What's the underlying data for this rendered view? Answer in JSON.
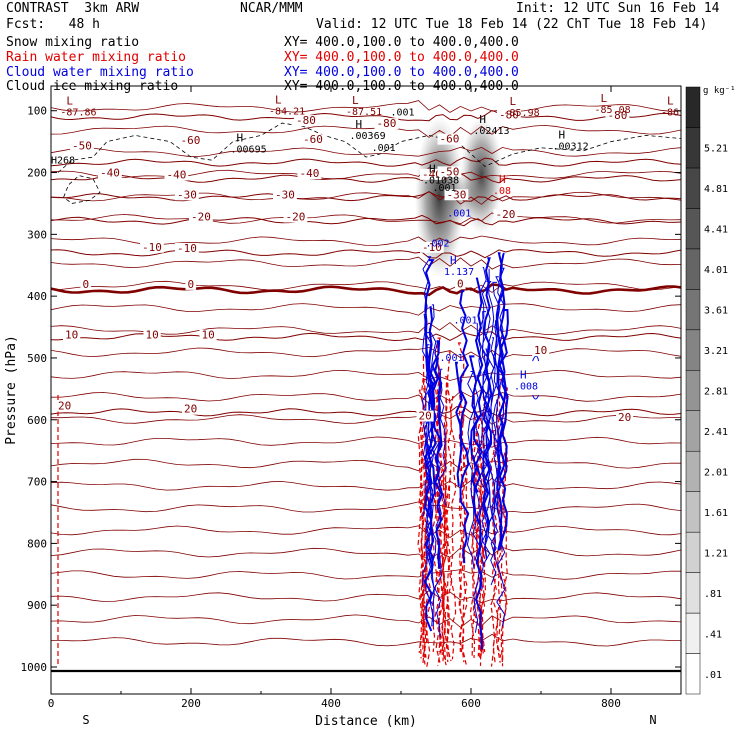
{
  "header": {
    "model": "CONTRAST  3km ARW",
    "org": "NCAR/MMM",
    "init": "Init: 12 UTC Sun 16 Feb 14",
    "fcst": "Fcst:   48 h",
    "valid": "Valid: 12 UTC Tue 18 Feb 14 (22 ChT Tue 18 Feb 14)",
    "fields": [
      {
        "name": "Snow mixing ratio",
        "xy": "XY= 400.0,100.0 to 400.0,400.0",
        "color": "#000000"
      },
      {
        "name": "Rain water mixing ratio",
        "xy": "XY= 400.0,100.0 to 400.0,400.0",
        "color": "#e00000"
      },
      {
        "name": "Cloud water mixing ratio",
        "xy": "XY= 400.0,100.0 to 400.0,400.0",
        "color": "#0000e0"
      },
      {
        "name": "Cloud ice mixing ratio",
        "xy": "XY= 400.0,100.0 to 400.0,400.0",
        "color": "#000000"
      }
    ]
  },
  "chart_data": {
    "type": "heatmap",
    "xlabel": "Distance (km)",
    "ylabel": "Pressure (hPa)",
    "xlim": [
      0,
      900
    ],
    "ylim": [
      1000,
      60
    ],
    "x_ticks": [
      0,
      200,
      400,
      600,
      800
    ],
    "x_tick_labels": [
      "0",
      "200",
      "400",
      "600",
      "800"
    ],
    "y_ticks": [
      100,
      200,
      300,
      400,
      500,
      600,
      700,
      800,
      900,
      1000
    ],
    "y_tick_labels": [
      "100",
      "200",
      "300",
      "400",
      "500",
      "600",
      "700",
      "800",
      "900",
      "1000"
    ],
    "endpoints": [
      {
        "x": 50,
        "label": "S"
      },
      {
        "x": 860,
        "label": "N"
      }
    ],
    "colorbar": {
      "unit": "g kg⁻¹",
      "levels": [
        0.01,
        0.41,
        0.81,
        1.21,
        1.61,
        2.01,
        2.41,
        2.81,
        3.21,
        3.61,
        4.01,
        4.41,
        4.81,
        5.21
      ],
      "labels": [
        ".01",
        ".41",
        ".81",
        "1.21",
        "1.61",
        "2.01",
        "2.41",
        "2.81",
        "3.21",
        "3.61",
        "4.01",
        "4.41",
        "4.81",
        "5.21"
      ]
    },
    "temperature_contours": [
      {
        "p": 110,
        "label": "-80"
      },
      {
        "p": 184,
        "label": "-50"
      },
      {
        "p": 210,
        "label": "-40"
      },
      {
        "p": 240,
        "label": "-30"
      },
      {
        "p": 278,
        "label": "-20"
      },
      {
        "p": 330,
        "label": "-10"
      },
      {
        "p": 390,
        "label": "0",
        "bold": true
      },
      {
        "p": 466,
        "label": "10"
      },
      {
        "p": 588,
        "label": "20"
      }
    ],
    "temperature_labels": [
      {
        "x": 70,
        "p": 205,
        "text": "-40"
      },
      {
        "x": 165,
        "p": 208,
        "text": "-40"
      },
      {
        "x": 355,
        "p": 206,
        "text": "-40"
      },
      {
        "x": 530,
        "p": 207,
        "text": "-40"
      },
      {
        "x": 180,
        "p": 240,
        "text": "-30"
      },
      {
        "x": 320,
        "p": 240,
        "text": "-30"
      },
      {
        "x": 565,
        "p": 240,
        "text": "-30"
      },
      {
        "x": 200,
        "p": 276,
        "text": "-20"
      },
      {
        "x": 335,
        "p": 276,
        "text": "-20"
      },
      {
        "x": 635,
        "p": 272,
        "text": "-20"
      },
      {
        "x": 130,
        "p": 325,
        "text": "-10"
      },
      {
        "x": 180,
        "p": 327,
        "text": "-10"
      },
      {
        "x": 530,
        "p": 325,
        "text": "-10"
      },
      {
        "x": 45,
        "p": 385,
        "text": "0"
      },
      {
        "x": 195,
        "p": 385,
        "text": "0"
      },
      {
        "x": 580,
        "p": 384,
        "text": "0"
      },
      {
        "x": 20,
        "p": 467,
        "text": "10"
      },
      {
        "x": 135,
        "p": 467,
        "text": "10"
      },
      {
        "x": 215,
        "p": 467,
        "text": "10"
      },
      {
        "x": 690,
        "p": 492,
        "text": "10"
      },
      {
        "x": 10,
        "p": 582,
        "text": "20"
      },
      {
        "x": 190,
        "p": 587,
        "text": "20"
      },
      {
        "x": 525,
        "p": 598,
        "text": "20"
      },
      {
        "x": 810,
        "p": 600,
        "text": "20"
      },
      {
        "x": 30,
        "p": 161,
        "text": "-50"
      },
      {
        "x": 185,
        "p": 152,
        "text": "-60"
      },
      {
        "x": 360,
        "p": 151,
        "text": "-60"
      },
      {
        "x": 555,
        "p": 150,
        "text": "-60"
      },
      {
        "x": 465,
        "p": 125,
        "text": "-80"
      },
      {
        "x": 640,
        "p": 111,
        "text": "-80"
      },
      {
        "x": 350,
        "p": 120,
        "text": "-80"
      },
      {
        "x": 795,
        "p": 112,
        "text": "-80"
      },
      {
        "x": 555,
        "p": 203,
        "text": "-50"
      }
    ],
    "extrema": [
      {
        "x": 22,
        "p": 90,
        "type": "L",
        "value": "-87.86",
        "color": "#800000"
      },
      {
        "x": 320,
        "p": 88,
        "type": "L",
        "value": "-84.21",
        "color": "#800000"
      },
      {
        "x": 430,
        "p": 89,
        "type": "L",
        "value": "-87.51",
        "color": "#800000"
      },
      {
        "x": 655,
        "p": 91,
        "type": "L",
        "value": "-85.98",
        "color": "#800000"
      },
      {
        "x": 785,
        "p": 86,
        "type": "L",
        "value": "-85.08",
        "color": "#800000"
      },
      {
        "x": 880,
        "p": 90,
        "type": "L",
        "value": "-86",
        "color": "#800000"
      },
      {
        "x": 435,
        "p": 128,
        "type": "H",
        "value": ".00369",
        "color": "#000000"
      },
      {
        "x": 265,
        "p": 150,
        "type": "H",
        "value": ".00695",
        "color": "#000000"
      },
      {
        "x": 612,
        "p": 120,
        "type": "H",
        "value": ".02413",
        "color": "#000000"
      },
      {
        "x": 725,
        "p": 145,
        "type": "H",
        "value": ".00312",
        "color": "#000000"
      },
      {
        "x": 540,
        "p": 200,
        "type": "H",
        "value": ".01038",
        "color": "#000000"
      },
      {
        "x": 640,
        "p": 217,
        "type": "H",
        "value": ".08",
        "color": "#e00000"
      },
      {
        "x": 570,
        "p": 348,
        "type": "H",
        "value": "1.137",
        "color": "#0000e0"
      },
      {
        "x": 670,
        "p": 533,
        "type": "H",
        "value": ".008",
        "color": "#0000e0"
      }
    ],
    "small_labels": [
      {
        "x": 485,
        "p": 108,
        "text": ".001",
        "color": "#000000"
      },
      {
        "x": 0,
        "p": 185,
        "text": "H268",
        "color": "#000000"
      },
      {
        "x": 458,
        "p": 165,
        "text": ".001",
        "color": "#000000"
      },
      {
        "x": 545,
        "p": 230,
        "text": ".001",
        "color": "#000000"
      },
      {
        "x": 566,
        "p": 271,
        "text": ".001",
        "color": "#0000e0"
      },
      {
        "x": 535,
        "p": 320,
        "text": ".002",
        "color": "#0000e0"
      },
      {
        "x": 575,
        "p": 444,
        "text": ".001",
        "color": "#0000e0"
      },
      {
        "x": 555,
        "p": 505,
        "text": ".001",
        "color": "#0000e0"
      }
    ],
    "snow_shading": [
      {
        "x": 555,
        "p_top": 110,
        "p_bot": 370,
        "width_km": 35,
        "peak": 5.0
      },
      {
        "x": 615,
        "p_top": 110,
        "p_bot": 300,
        "width_km": 30,
        "peak": 4.6
      },
      {
        "x": 585,
        "p_top": 200,
        "p_bot": 280,
        "width_km": 40,
        "peak": 1.8
      }
    ],
    "rain_region": {
      "x_min": 525,
      "x_max": 650,
      "p_top": 430,
      "p_bot": 1000,
      "edge_x": 10
    },
    "cloud_water_region": {
      "x_min": 530,
      "x_max": 650,
      "p_top": 330,
      "p_bot": 980
    }
  }
}
